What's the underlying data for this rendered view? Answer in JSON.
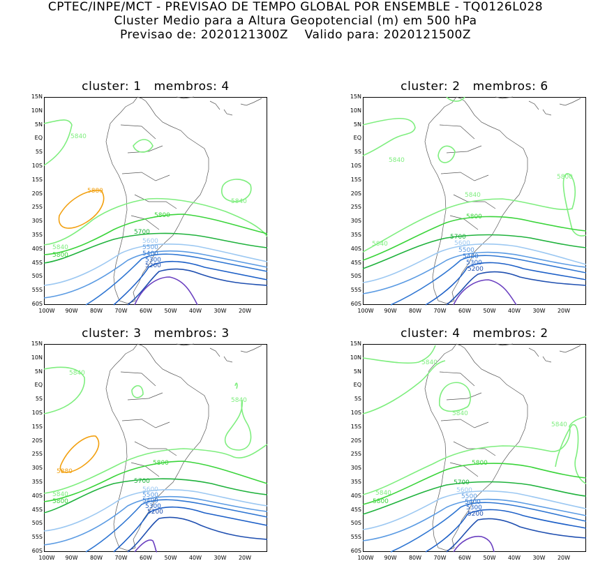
{
  "header": {
    "line1": "CPTEC/INPE/MCT - PREVISAO DE TEMPO GLOBAL POR ENSEMBLE - TQ0126L028",
    "line2": "Cluster Medio para a Altura Geopotencial (m) em 500 hPa",
    "line3": "Previsao de: 2020121300Z    Valido para: 2020121500Z"
  },
  "axes": {
    "lat_labels": [
      "15N",
      "10N",
      "5N",
      "EQ",
      "5S",
      "10S",
      "15S",
      "20S",
      "25S",
      "30S",
      "35S",
      "40S",
      "45S",
      "50S",
      "55S",
      "60S"
    ],
    "lon_labels": [
      "100W",
      "90W",
      "80W",
      "70W",
      "60W",
      "50W",
      "40W",
      "30W",
      "20W"
    ]
  },
  "colors": {
    "c5200": "#1f4fb0",
    "c5300": "#1c5fc7",
    "c5400": "#2f76d2",
    "c5500": "#5b9be3",
    "c5600": "#9cc8f2",
    "c5700": "#1fb23c",
    "c5800": "#3ad43a",
    "c5840": "#7eee7e",
    "c5880": "#f2a00f",
    "c_low": "#6a3fc0",
    "coast": "#555555"
  },
  "panels": [
    {
      "title": "cluster: 1   membros: 4",
      "labels": {
        "l5840a": "5840",
        "l5840b": "5840",
        "l5840c": "5840",
        "l5880": "5880",
        "l5800a": "5800",
        "l5800b": "5800",
        "l5700": "5700",
        "l5600": "5600",
        "l5500": "5500",
        "l5400": "5400",
        "l5300": "5300",
        "l5200": "5200"
      }
    },
    {
      "title": "cluster: 2   membros: 6",
      "labels": {
        "l5840a": "5840",
        "l5840b": "5840",
        "l5840c": "5840",
        "l5800a": "5800",
        "l5700": "5700",
        "l5600": "5600",
        "l5500": "5500",
        "l5400": "5400",
        "l5300": "5300",
        "l5200": "5200"
      }
    },
    {
      "title": "cluster: 3   membros: 3",
      "labels": {
        "l5840a": "5840",
        "l5840b": "5840",
        "l5840c": "5840",
        "l5880": "5880",
        "l5800a": "5800",
        "l5800b": "5800",
        "l5700": "5700",
        "l5600": "5600",
        "l5500": "5500",
        "l5400": "5400",
        "l5300": "5300",
        "l5200": "5200"
      }
    },
    {
      "title": "cluster: 4   membros: 2",
      "labels": {
        "l5840a": "5840",
        "l5840b": "5840",
        "l5840c": "5840",
        "l5840d": "5840",
        "l5800a": "5800",
        "l5800b": "5800",
        "l5700": "5700",
        "l5600": "5600",
        "l5500": "5500",
        "l5400": "5400",
        "l5300": "5300",
        "l5200": "5200"
      }
    }
  ]
}
